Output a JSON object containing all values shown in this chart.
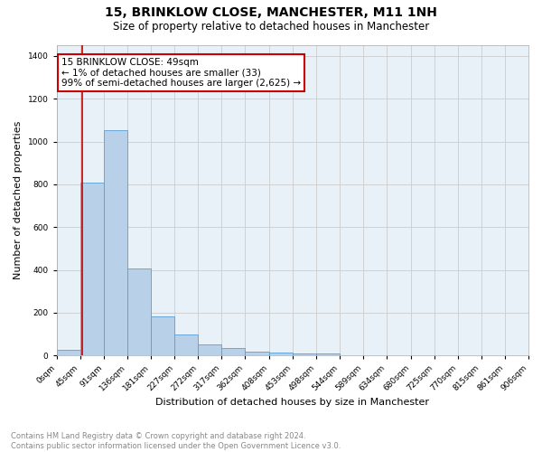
{
  "title": "15, BRINKLOW CLOSE, MANCHESTER, M11 1NH",
  "subtitle": "Size of property relative to detached houses in Manchester",
  "xlabel": "Distribution of detached houses by size in Manchester",
  "ylabel": "Number of detached properties",
  "bin_labels": [
    "0sqm",
    "45sqm",
    "91sqm",
    "136sqm",
    "181sqm",
    "227sqm",
    "272sqm",
    "317sqm",
    "362sqm",
    "408sqm",
    "453sqm",
    "498sqm",
    "544sqm",
    "589sqm",
    "634sqm",
    "680sqm",
    "725sqm",
    "770sqm",
    "815sqm",
    "861sqm",
    "906sqm"
  ],
  "bin_edges": [
    0,
    45,
    91,
    136,
    181,
    227,
    272,
    317,
    362,
    408,
    453,
    498,
    544,
    589,
    634,
    680,
    725,
    770,
    815,
    861,
    906
  ],
  "bar_values": [
    25,
    810,
    1055,
    405,
    185,
    100,
    52,
    35,
    20,
    13,
    10,
    10,
    0,
    0,
    0,
    0,
    0,
    0,
    0,
    0
  ],
  "bar_color": "#b8d0e8",
  "bar_edge_color": "#5a9fd4",
  "red_line_x": 49,
  "annotation_title": "15 BRINKLOW CLOSE: 49sqm",
  "annotation_line1": "← 1% of detached houses are smaller (33)",
  "annotation_line2": "99% of semi-detached houses are larger (2,625) →",
  "annotation_box_color": "#ffffff",
  "annotation_border_color": "#cc0000",
  "red_line_color": "#cc0000",
  "ylim": [
    0,
    1450
  ],
  "yticks": [
    0,
    200,
    400,
    600,
    800,
    1000,
    1200,
    1400
  ],
  "grid_color": "#cccccc",
  "bg_color": "#e8f0f8",
  "footer1": "Contains HM Land Registry data © Crown copyright and database right 2024.",
  "footer2": "Contains public sector information licensed under the Open Government Licence v3.0.",
  "title_fontsize": 10,
  "subtitle_fontsize": 8.5,
  "xlabel_fontsize": 8,
  "ylabel_fontsize": 8,
  "tick_fontsize": 6.5,
  "footer_fontsize": 6,
  "annotation_fontsize": 7.5
}
